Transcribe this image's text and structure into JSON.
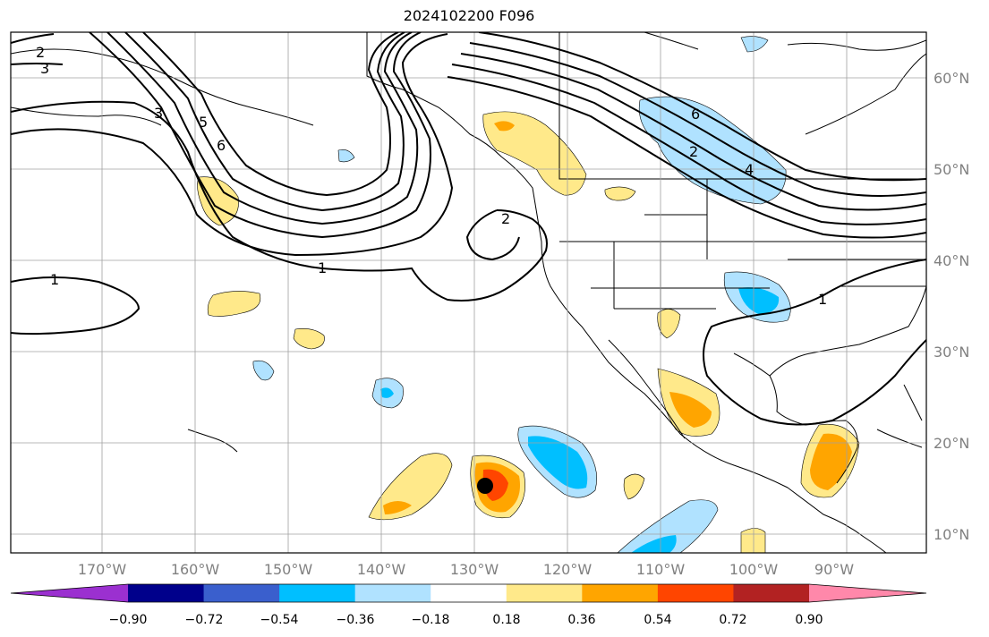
{
  "title": "2024102200 F096",
  "longitude_labels": [
    "170°W",
    "160°W",
    "150°W",
    "140°W",
    "130°W",
    "120°W",
    "110°W",
    "100°W",
    "90°W"
  ],
  "latitude_labels": [
    "60°N",
    "50°N",
    "40°N",
    "30°N",
    "20°N",
    "10°N"
  ],
  "colorbar": {
    "ticks": [
      "−0.90",
      "−0.72",
      "−0.54",
      "−0.36",
      "−0.18",
      "0.18",
      "0.36",
      "0.54",
      "0.72",
      "0.90"
    ],
    "colors": [
      "#9b30d0",
      "#00008b",
      "#3a5fcd",
      "#00bfff",
      "#b0e2ff",
      "#ffffff",
      "#ffe98a",
      "#ffa500",
      "#ff4500",
      "#b22222",
      "#ff88aa"
    ]
  },
  "contour_labels": [
    "1",
    "2",
    "3",
    "4",
    "5",
    "6"
  ],
  "contour_label_instances": [
    "2",
    "3",
    "3",
    "5",
    "6",
    "1",
    "1",
    "2",
    "6",
    "2",
    "4",
    "1"
  ],
  "colors": {
    "land_line": "#000000",
    "grid": "#a0a0a0"
  }
}
